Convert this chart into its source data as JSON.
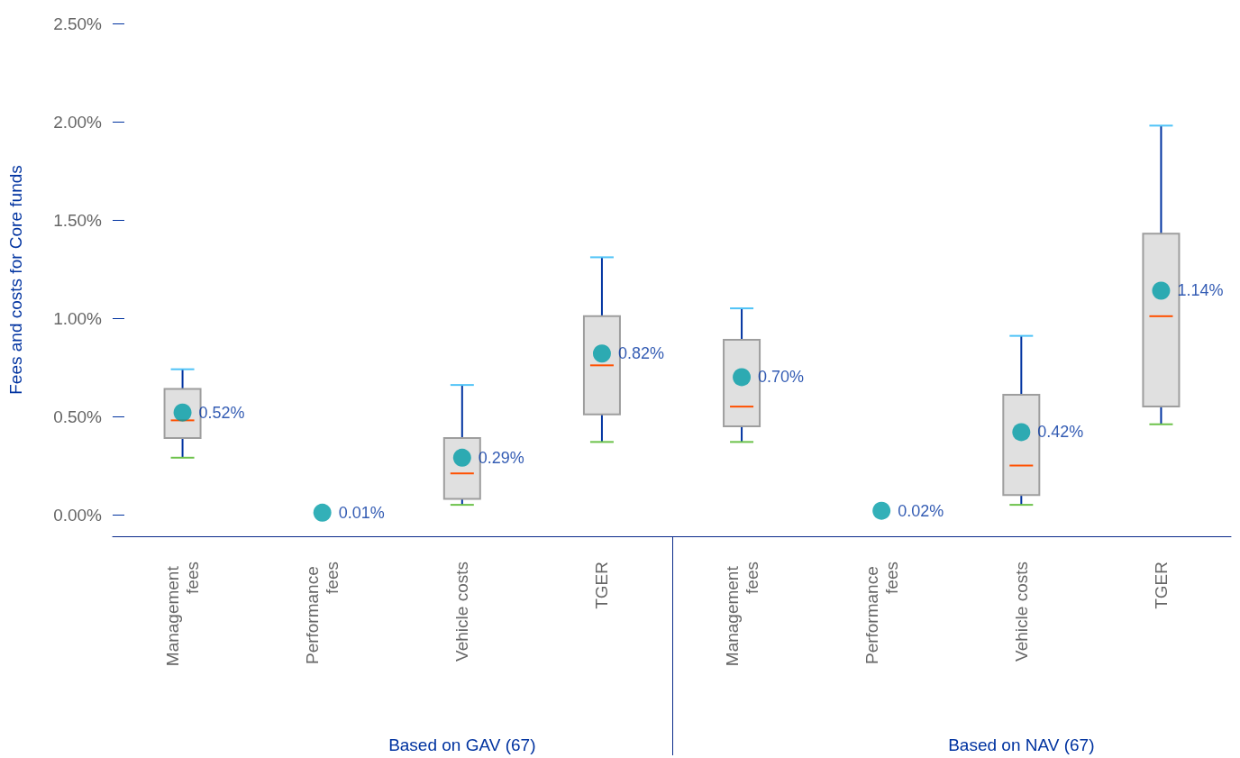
{
  "chart_data": {
    "type": "box",
    "ylabel": "Fees and costs for Core funds",
    "categories": [
      "Management fees",
      "Performance fees",
      "Vehicle costs",
      "TGER",
      "Management fees",
      "Performance fees",
      "Vehicle costs",
      "TGER"
    ],
    "boxes": [
      {
        "low": 0.29,
        "q1": 0.39,
        "median": 0.48,
        "q3": 0.64,
        "high": 0.74
      },
      null,
      {
        "low": 0.05,
        "q1": 0.08,
        "median": 0.21,
        "q3": 0.39,
        "high": 0.66
      },
      {
        "low": 0.37,
        "q1": 0.51,
        "median": 0.76,
        "q3": 1.01,
        "high": 1.31
      },
      {
        "low": 0.37,
        "q1": 0.45,
        "median": 0.55,
        "q3": 0.89,
        "high": 1.05
      },
      null,
      {
        "low": 0.05,
        "q1": 0.1,
        "median": 0.25,
        "q3": 0.61,
        "high": 0.91
      },
      {
        "low": 0.46,
        "q1": 0.55,
        "median": 1.01,
        "q3": 1.43,
        "high": 1.98
      }
    ],
    "series": [
      {
        "type": "scatter",
        "color": "#009ca6",
        "values": [
          0.52,
          0.01,
          0.29,
          0.82,
          0.7,
          0.02,
          0.42,
          1.14
        ],
        "value_labels": [
          "0.52%",
          "0.01%",
          "0.29%",
          "0.82%",
          "0.70%",
          "0.02%",
          "0.42%",
          "1.14%"
        ]
      }
    ],
    "ylim": [
      -0.11,
      2.5
    ],
    "yticks": [
      {
        "value": 0,
        "label": "0.00%"
      },
      {
        "value": 0.5,
        "label": "0.50%"
      },
      {
        "value": 1,
        "label": "1.00%"
      },
      {
        "value": 1.5,
        "label": "1.50%"
      },
      {
        "value": 2,
        "label": "2.00%"
      },
      {
        "value": 2.5,
        "label": "2.50%"
      }
    ],
    "grid": false,
    "marker": "circle",
    "annotations": [
      "Based on GAV (67)",
      "Based on NAV (67)"
    ]
  }
}
